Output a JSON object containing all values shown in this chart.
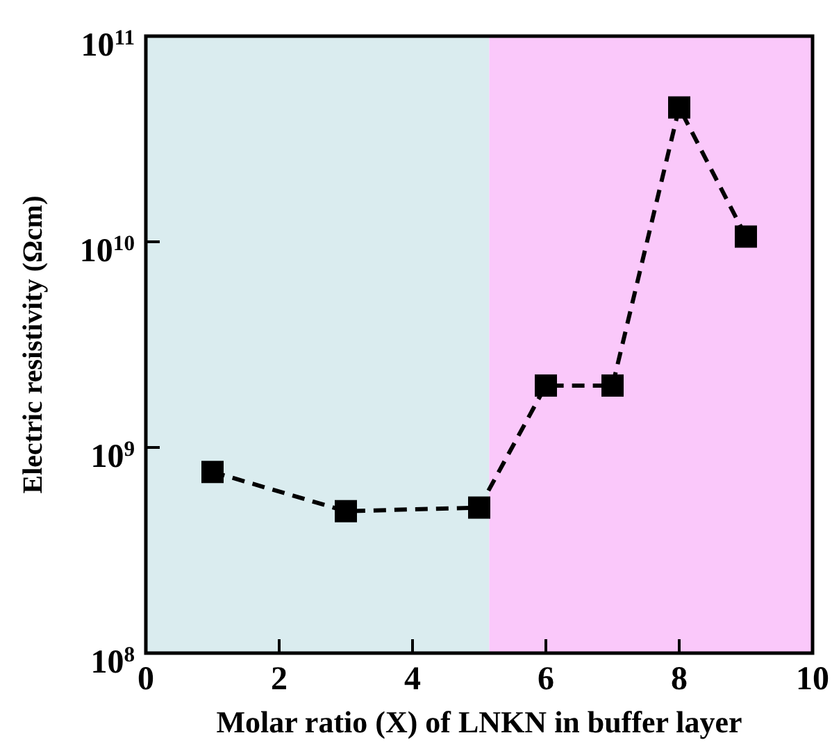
{
  "chart_data": {
    "type": "line",
    "xlabel": "Molar ratio (X) of LNKN in buffer layer",
    "ylabel": "Electric resistivity (Ωcm)",
    "x": [
      1,
      3,
      5,
      6,
      7,
      8,
      9
    ],
    "series": [
      {
        "color": "#000000",
        "values": [
          760000000.0,
          490000000.0,
          510000000.0,
          2000000000.0,
          2000000000.0,
          45000000000.0,
          10600000000.0
        ]
      }
    ],
    "xlim": [
      0,
      10
    ],
    "xticks": [
      0,
      2,
      4,
      6,
      8,
      10
    ],
    "ylim": [
      100000000.0,
      100000000000.0
    ],
    "yticks": [
      {
        "value": 100000000.0,
        "label": "10$^{8}$"
      },
      {
        "value": 1000000000.0,
        "label": "10$^{9}$"
      },
      {
        "value": 10000000000.0,
        "label": "10$^{10}$"
      },
      {
        "value": 100000000000.0,
        "label": "10$^{11}$"
      }
    ],
    "log": "y",
    "grid": false,
    "marker": "square",
    "line_style": "dashed",
    "bands": [
      {
        "axis": "x",
        "from": 0,
        "to": 5.15,
        "color": "#daecef"
      },
      {
        "axis": "x",
        "from": 5.15,
        "to": 10,
        "color": "#fac8fa"
      }
    ]
  }
}
